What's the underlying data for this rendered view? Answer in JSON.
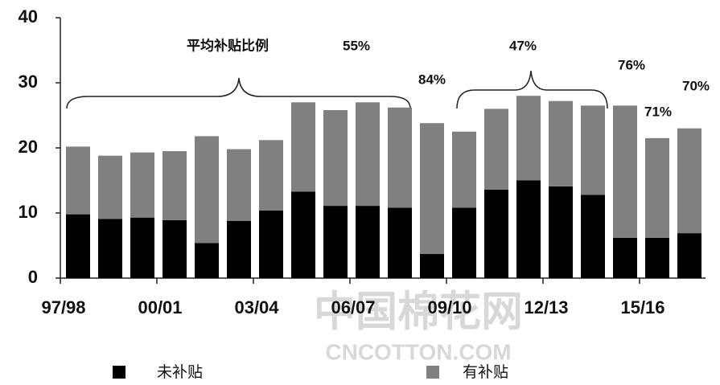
{
  "chart_data": {
    "type": "stacked_bar",
    "categories": [
      "97/98",
      null,
      null,
      "00/01",
      null,
      null,
      "03/04",
      null,
      null,
      "06/07",
      null,
      null,
      "09/10",
      null,
      null,
      "12/13",
      null,
      null,
      "15/16",
      null
    ],
    "series": [
      {
        "name": "未补贴",
        "color": "#000000",
        "values": [
          9.8,
          9.1,
          9.3,
          8.9,
          5.4,
          8.8,
          10.4,
          13.3,
          11.1,
          11.1,
          10.8,
          3.7,
          10.8,
          13.6,
          15.0,
          14.1,
          12.8,
          6.2,
          6.2,
          6.9
        ]
      },
      {
        "name": "有补贴",
        "color": "#808080",
        "values": [
          10.4,
          9.7,
          10.0,
          10.6,
          16.4,
          11.0,
          10.8,
          13.7,
          14.7,
          15.9,
          15.4,
          20.1,
          11.7,
          12.4,
          13.0,
          13.1,
          13.7,
          20.3,
          15.3,
          16.1
        ]
      }
    ],
    "ylim": [
      0,
      40
    ],
    "yticks": [
      0,
      10,
      20,
      30,
      40
    ],
    "grid": false,
    "annotations": [
      "平均补贴比例",
      "55%",
      "84%",
      "47%",
      "76%",
      "71%",
      "70%"
    ],
    "watermark": [
      "中国棉花网",
      "CNCOTTON.COM"
    ]
  }
}
